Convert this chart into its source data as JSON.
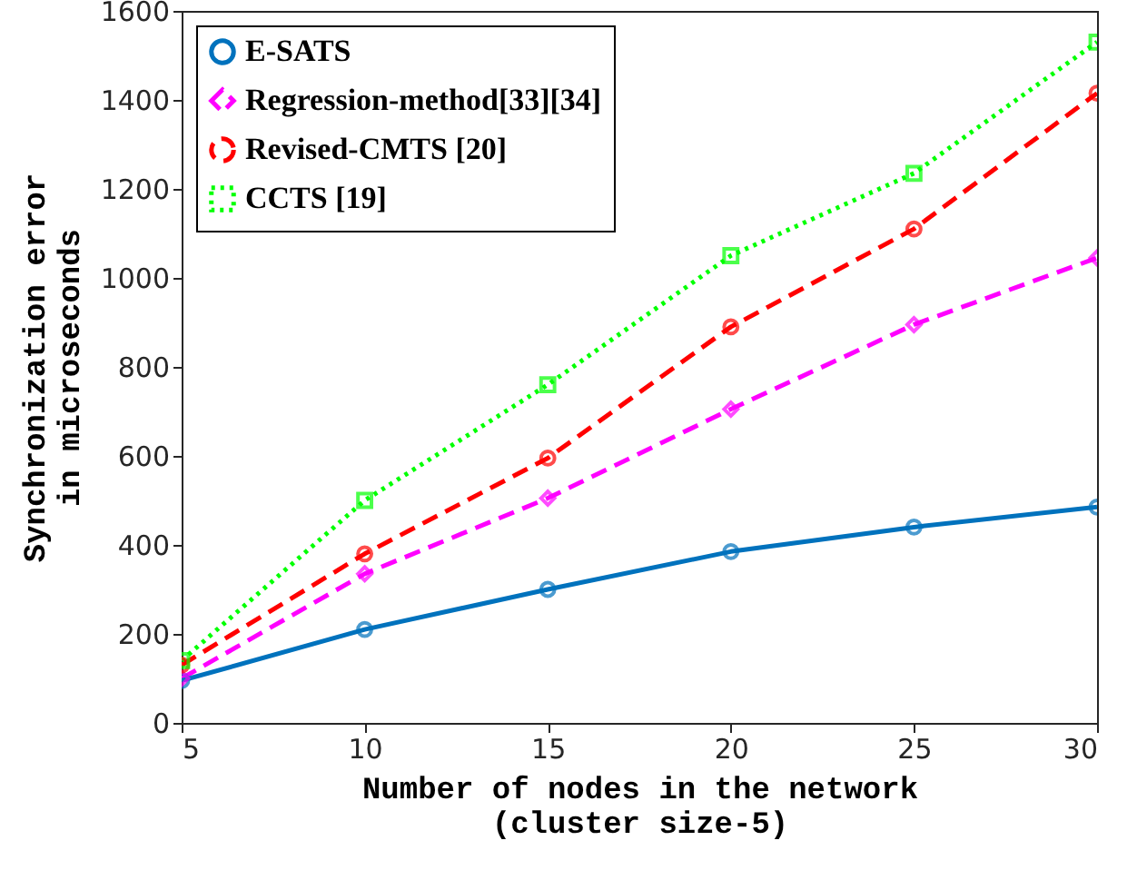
{
  "chart_data": {
    "type": "line",
    "xlabel": "Number of nodes in the network\n(cluster size-5)",
    "ylabel": "Synchronization error\nin microseconds",
    "x": [
      5,
      10,
      15,
      20,
      25,
      30
    ],
    "series": [
      {
        "name": "E-SATS",
        "color": "#0072bd",
        "values": [
          95,
          210,
          300,
          385,
          440,
          485
        ],
        "marker": "circle",
        "line_style": "solid"
      },
      {
        "name": "Regression-method[33][34]",
        "color": "#ff00ff",
        "values": [
          100,
          335,
          505,
          705,
          895,
          1045
        ],
        "marker": "diamond",
        "line_style": "dashed"
      },
      {
        "name": "Revised-CMTS [20]",
        "color": "#ff0000",
        "values": [
          130,
          380,
          595,
          890,
          1110,
          1415
        ],
        "marker": "circle",
        "line_style": "dashed"
      },
      {
        "name": "CCTS [19]",
        "color": "#00ff00",
        "values": [
          140,
          500,
          760,
          1050,
          1235,
          1530
        ],
        "marker": "square",
        "line_style": "dotted"
      }
    ],
    "xlim": [
      5,
      30
    ],
    "xticks": [
      5,
      10,
      15,
      20,
      25,
      30
    ],
    "ylim": [
      0,
      1600
    ],
    "yticks": [
      0,
      200,
      400,
      600,
      800,
      1000,
      1200,
      1400,
      1600
    ],
    "grid": false,
    "legend": "top left"
  }
}
